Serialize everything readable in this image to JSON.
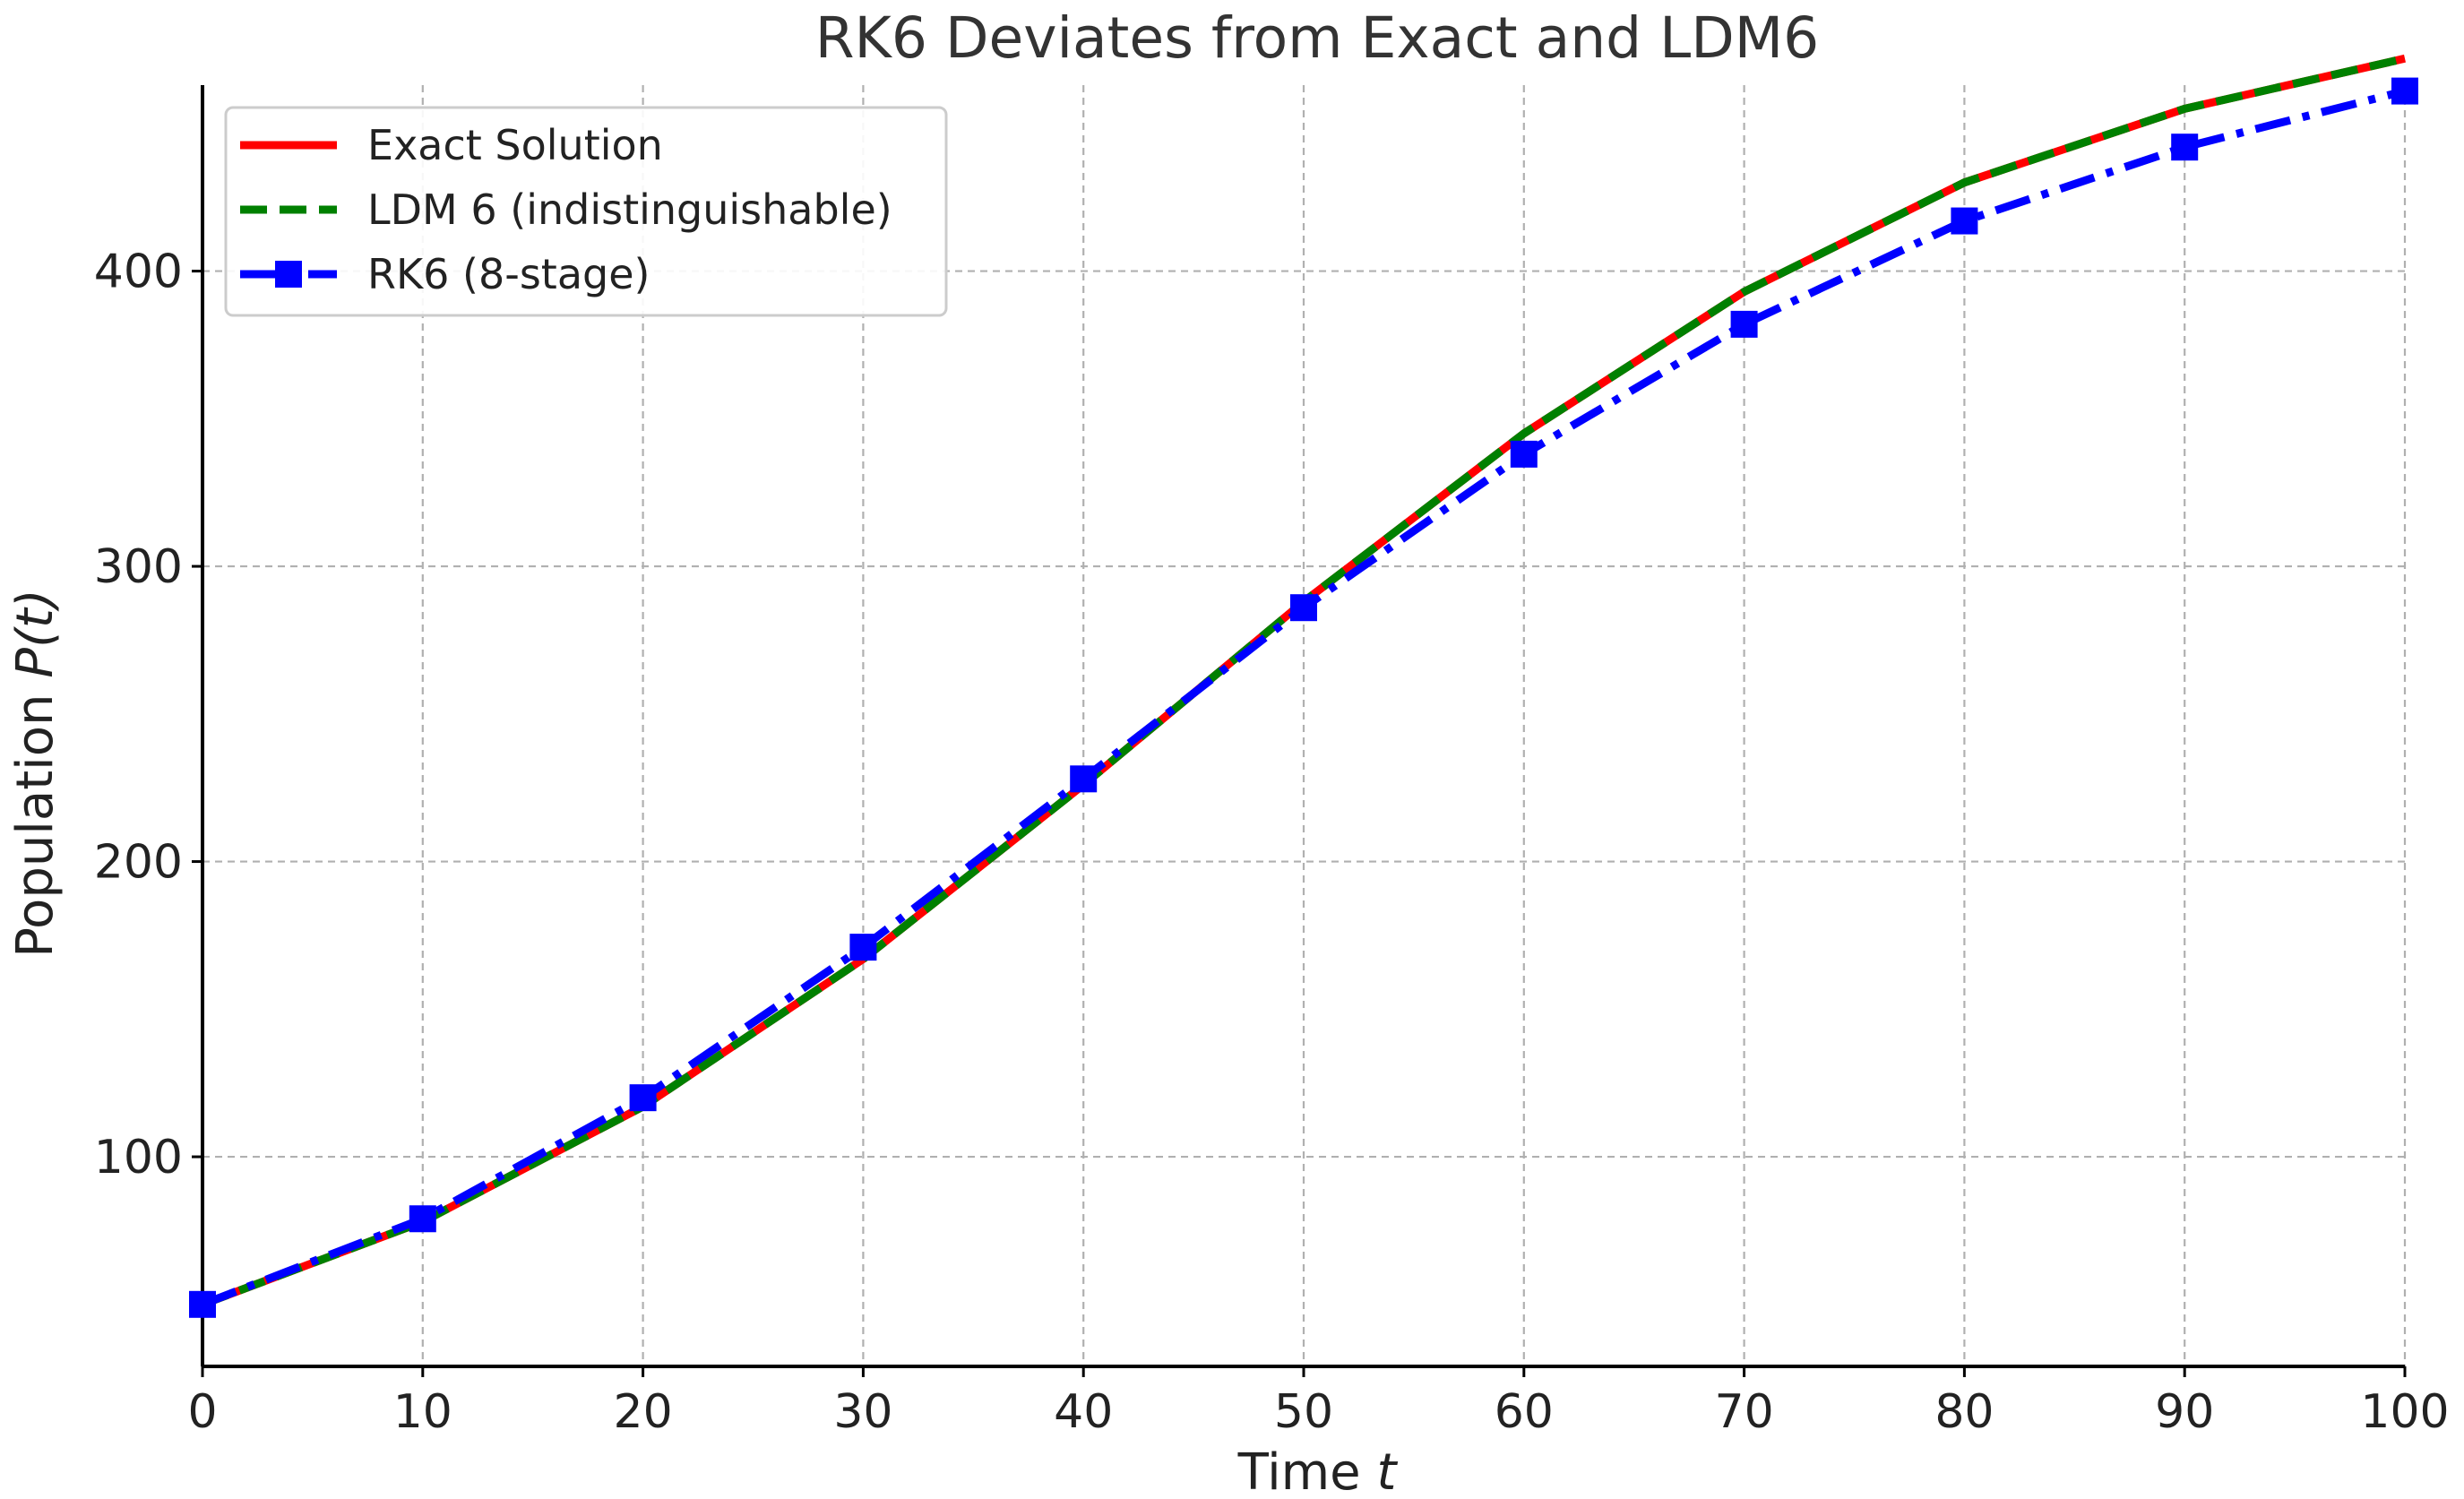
{
  "chart_data": {
    "type": "line",
    "title": "RK6 Deviates from Exact and LDM6",
    "xlabel": "Time",
    "xlabel_var": "t",
    "ylabel": "Population",
    "ylabel_var": "P(t)",
    "xlim": [
      0,
      100
    ],
    "ylim": [
      29,
      463
    ],
    "x_ticks": [
      0,
      10,
      20,
      30,
      40,
      50,
      60,
      70,
      80,
      90,
      100
    ],
    "x_tick_labels": [
      "0",
      "10",
      "20",
      "30",
      "40",
      "50",
      "60",
      "70",
      "80",
      "90",
      "100"
    ],
    "y_ticks": [
      100,
      200,
      300,
      400
    ],
    "y_tick_labels": [
      "100",
      "200",
      "300",
      "400"
    ],
    "grid": true,
    "legend_position": "top-left",
    "x": [
      0,
      10,
      20,
      30,
      40,
      50,
      60,
      70,
      80,
      90,
      100
    ],
    "series": [
      {
        "name": "Exact Solution",
        "color": "#ff0000",
        "style": "solid",
        "marker": "none",
        "values": [
          50,
          78,
          117,
          167,
          226,
          288,
          345,
          393,
          430,
          455,
          472
        ]
      },
      {
        "name": "LDM 6 (indistinguishable)",
        "color": "#008000",
        "style": "dashed",
        "marker": "none",
        "values": [
          50,
          78,
          117,
          167,
          226,
          288,
          345,
          393,
          430,
          455,
          472
        ]
      },
      {
        "name": "RK6 (8-stage)",
        "color": "#0000ff",
        "style": "dashdot",
        "marker": "square",
        "values": [
          50,
          79,
          120,
          171,
          228,
          286,
          338,
          382,
          417,
          442,
          461
        ]
      }
    ]
  }
}
